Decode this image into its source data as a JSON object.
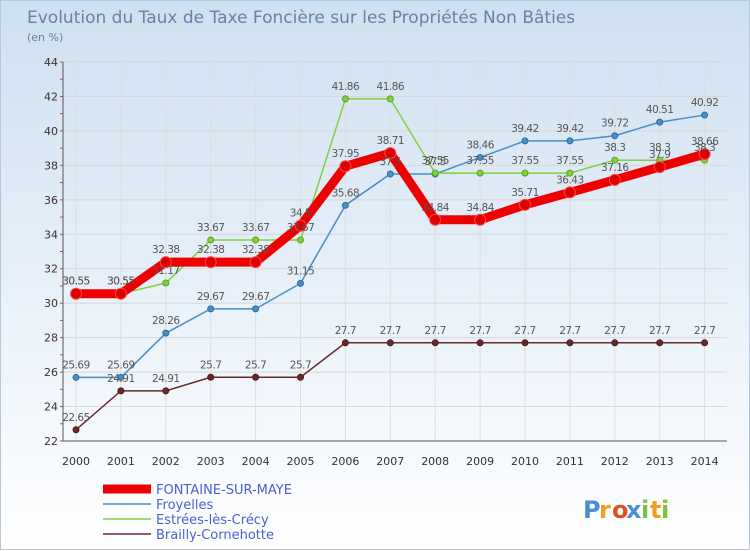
{
  "chart_data": {
    "type": "line",
    "title": "Evolution du Taux de Taxe Foncière sur les Propriétés Non Bâties",
    "unit_label": "(en %)",
    "xlabel": "",
    "ylabel": "",
    "ylim": [
      22,
      44
    ],
    "y_ticks": [
      22,
      24,
      26,
      28,
      30,
      32,
      34,
      36,
      38,
      40,
      42,
      44
    ],
    "x": [
      "2000",
      "2001",
      "2002",
      "2003",
      "2004",
      "2005",
      "2006",
      "2007",
      "2008",
      "2009",
      "2010",
      "2011",
      "2012",
      "2013",
      "2014"
    ],
    "series": [
      {
        "name": "FONTAINE-SUR-MAYE",
        "color": "#ee0000",
        "values": [
          30.55,
          30.55,
          32.38,
          32.38,
          32.38,
          34.5,
          37.95,
          38.71,
          34.84,
          34.84,
          35.71,
          36.43,
          37.16,
          37.9,
          38.66
        ],
        "labels": [
          "30.55",
          "30.55",
          "32.38",
          "32.38",
          "32.38",
          "34.5",
          "37.95",
          "38.71",
          "34.84",
          "34.84",
          "35.71",
          "36.43",
          "37.16",
          "37.9",
          "38.66"
        ]
      },
      {
        "name": "Froyelles",
        "color": "#4a8ec8",
        "values": [
          25.69,
          25.69,
          28.26,
          29.67,
          29.67,
          31.15,
          35.68,
          37.5,
          37.5,
          38.46,
          39.42,
          39.42,
          39.72,
          40.51,
          40.92
        ],
        "labels": [
          "25.69",
          "25.69",
          "28.26",
          "29.67",
          "29.67",
          "31.15",
          "35.68",
          "37.5",
          "37.5",
          "38.46",
          "39.42",
          "39.42",
          "39.72",
          "40.51",
          "40.92"
        ]
      },
      {
        "name": "Estrées-lès-Crécy",
        "color": "#80d040",
        "values": [
          30.55,
          30.55,
          31.17,
          33.67,
          33.67,
          33.67,
          41.86,
          41.86,
          37.55,
          37.55,
          37.55,
          37.55,
          38.3,
          38.3,
          38.3
        ],
        "labels": [
          "30.55",
          "30.55",
          "31.17",
          "33.67",
          "33.67",
          "33.67",
          "41.86",
          "41.86",
          "37.55",
          "37.55",
          "37.55",
          "37.55",
          "38.3",
          "38.3",
          "38.3"
        ]
      },
      {
        "name": "Brailly-Cornehotte",
        "color": "#6a2a2a",
        "values": [
          22.65,
          24.91,
          24.91,
          25.7,
          25.7,
          25.7,
          27.7,
          27.7,
          27.7,
          27.7,
          27.7,
          27.7,
          27.7,
          27.7,
          27.7
        ],
        "labels": [
          "22.65",
          "24.91",
          "24.91",
          "25.7",
          "25.7",
          "25.7",
          "27.7",
          "27.7",
          "27.7",
          "27.7",
          "27.7",
          "27.7",
          "27.7",
          "27.7",
          "27.7"
        ]
      }
    ]
  },
  "logo": {
    "letters": [
      "P",
      "r",
      "o",
      "x",
      "i",
      "t",
      "i"
    ],
    "colors": [
      "#4a90d0",
      "#f0a020",
      "#e05020",
      "#4a90d0",
      "#80c040",
      "#f0a020",
      "#80c040"
    ]
  }
}
